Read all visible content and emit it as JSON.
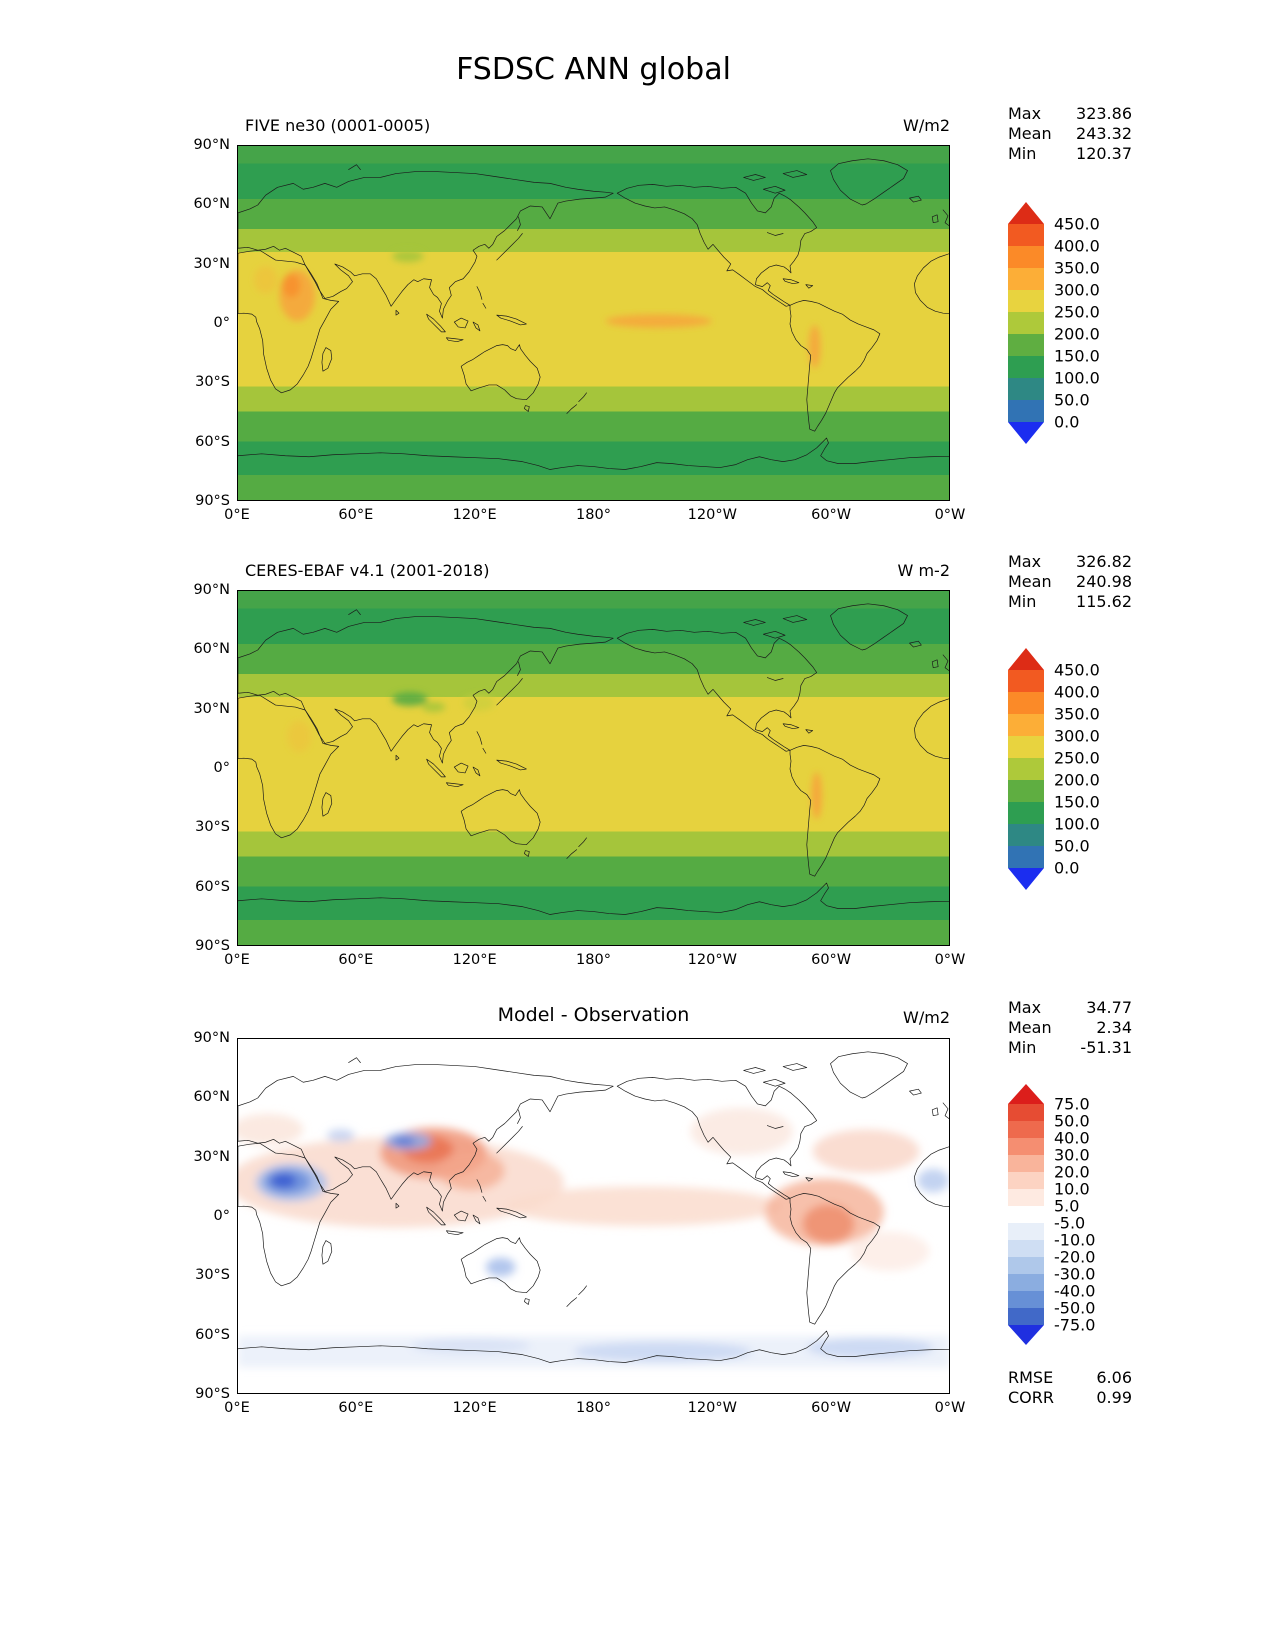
{
  "page_title": "FSDSC ANN global",
  "panels": [
    {
      "title": "FIVE ne30 (0001-0005)",
      "units": "W/m2",
      "stats": [
        {
          "label": "Max",
          "value": "323.86"
        },
        {
          "label": "Mean",
          "value": "243.32"
        },
        {
          "label": "Min",
          "value": "120.37"
        }
      ],
      "lat_ticks": [
        "90°N",
        "60°N",
        "30°N",
        "0°",
        "30°S",
        "60°S",
        "90°S"
      ],
      "lon_ticks": [
        "0°E",
        "60°E",
        "120°E",
        "180°",
        "120°W",
        "60°W",
        "0°W"
      ],
      "colorbar": {
        "labels": [
          "450.0",
          "400.0",
          "350.0",
          "300.0",
          "250.0",
          "200.0",
          "150.0",
          "100.0",
          "50.0",
          "0.0"
        ],
        "colors": [
          "#DD2C16",
          "#F25A21",
          "#FB8A28",
          "#FCAE37",
          "#E8D33F",
          "#AEC93A",
          "#5FAE41",
          "#2E9E51",
          "#2E8884",
          "#3173B4",
          "#1B2DF0"
        ]
      }
    },
    {
      "title": "CERES-EBAF v4.1 (2001-2018)",
      "units": "W m-2",
      "stats": [
        {
          "label": "Max",
          "value": "326.82"
        },
        {
          "label": "Mean",
          "value": "240.98"
        },
        {
          "label": "Min",
          "value": "115.62"
        }
      ],
      "lat_ticks": [
        "90°N",
        "60°N",
        "30°N",
        "0°",
        "30°S",
        "60°S",
        "90°S"
      ],
      "lon_ticks": [
        "0°E",
        "60°E",
        "120°E",
        "180°",
        "120°W",
        "60°W",
        "0°W"
      ],
      "colorbar": {
        "labels": [
          "450.0",
          "400.0",
          "350.0",
          "300.0",
          "250.0",
          "200.0",
          "150.0",
          "100.0",
          "50.0",
          "0.0"
        ],
        "colors": [
          "#DD2C16",
          "#F25A21",
          "#FB8A28",
          "#FCAE37",
          "#E8D33F",
          "#AEC93A",
          "#5FAE41",
          "#2E9E51",
          "#2E8884",
          "#3173B4",
          "#1B2DF0"
        ]
      }
    },
    {
      "title": "Model - Observation",
      "units": "W/m2",
      "stats": [
        {
          "label": "Max",
          "value": "34.77"
        },
        {
          "label": "Mean",
          "value": "2.34"
        },
        {
          "label": "Min",
          "value": "-51.31"
        }
      ],
      "metrics": [
        {
          "label": "RMSE",
          "value": "6.06"
        },
        {
          "label": "CORR",
          "value": "0.99"
        }
      ],
      "lat_ticks": [
        "90°N",
        "60°N",
        "30°N",
        "0°",
        "30°S",
        "60°S",
        "90°S"
      ],
      "lon_ticks": [
        "0°E",
        "60°E",
        "120°E",
        "180°",
        "120°W",
        "60°W",
        "0°W"
      ],
      "colorbar": {
        "labels": [
          "75.0",
          "50.0",
          "40.0",
          "30.0",
          "20.0",
          "10.0",
          "5.0",
          "-5.0",
          "-10.0",
          "-20.0",
          "-30.0",
          "-40.0",
          "-50.0",
          "-75.0"
        ],
        "colors": [
          "#DC1E1B",
          "#E64C33",
          "#EE6A4D",
          "#F58E71",
          "#F9B49B",
          "#FCD3C2",
          "#FEEAE1",
          "#FFFFFF",
          "#E8EFF9",
          "#CFDEF3",
          "#AFC8EA",
          "#8BADE0",
          "#6790D6",
          "#4169C8",
          "#1F2FE0"
        ]
      }
    }
  ],
  "chart_data": [
    {
      "type": "heatmap",
      "subtype": "filled-contour-world-map",
      "title": "FIVE ne30 (0001-0005)",
      "units": "W/m2",
      "projection": "equirectangular, centered 180°",
      "lon_range_deg_east": [
        0,
        360
      ],
      "lat_range": [
        -90,
        90
      ],
      "contour_levels": [
        0,
        50,
        100,
        150,
        200,
        250,
        300,
        350,
        400,
        450
      ],
      "stats": {
        "max": 323.86,
        "mean": 243.32,
        "min": 120.37
      },
      "zonal_mean_estimate": {
        "lat": [
          85,
          70,
          55,
          40,
          25,
          10,
          0,
          -10,
          -25,
          -40,
          -55,
          -70,
          -85
        ],
        "value": [
          140,
          135,
          185,
          235,
          275,
          285,
          285,
          285,
          270,
          230,
          180,
          140,
          175
        ]
      },
      "local_features": [
        {
          "region": "East Africa / Sahel ~10N, 20-40E",
          "value": "300-350"
        },
        {
          "region": "Equatorial central Pacific streak",
          "value": "300-325"
        },
        {
          "region": "Andes ~10-20S",
          "value": "300-320"
        },
        {
          "region": "Tibetan Plateau",
          "value": "200-250"
        }
      ]
    },
    {
      "type": "heatmap",
      "subtype": "filled-contour-world-map",
      "title": "CERES-EBAF v4.1 (2001-2018)",
      "units": "W m-2",
      "projection": "equirectangular, centered 180°",
      "lon_range_deg_east": [
        0,
        360
      ],
      "lat_range": [
        -90,
        90
      ],
      "contour_levels": [
        0,
        50,
        100,
        150,
        200,
        250,
        300,
        350,
        400,
        450
      ],
      "stats": {
        "max": 326.82,
        "mean": 240.98,
        "min": 115.62
      },
      "zonal_mean_estimate": {
        "lat": [
          85,
          70,
          55,
          40,
          25,
          10,
          0,
          -10,
          -25,
          -40,
          -55,
          -70,
          -85
        ],
        "value": [
          140,
          135,
          180,
          230,
          275,
          280,
          285,
          285,
          270,
          230,
          180,
          145,
          170
        ]
      },
      "local_features": [
        {
          "region": "Andes / Atacama ~15-25S",
          "value": "300-330"
        },
        {
          "region": "Tibetan Plateau / East Asia",
          "value": "150-250 (greener than model)"
        }
      ]
    },
    {
      "type": "heatmap",
      "subtype": "difference-map",
      "title": "Model - Observation",
      "units": "W/m2",
      "contour_levels": [
        -75,
        -50,
        -40,
        -30,
        -20,
        -10,
        -5,
        5,
        10,
        20,
        30,
        40,
        50,
        75
      ],
      "stats": {
        "max": 34.77,
        "mean": 2.34,
        "min": -51.31,
        "rmse": 6.06,
        "corr": 0.99
      },
      "local_features": [
        {
          "region": "North-central Africa ~15N, 10-35E",
          "value": "-30 to -51 (strong negative)"
        },
        {
          "region": "Tibetan Plateau / central Asia",
          "value": "-10 to -30"
        },
        {
          "region": "South and East Asia belt 0-40N",
          "value": "+10 to +30"
        },
        {
          "region": "Tropical Atlantic and northern South America",
          "value": "+10 to +25"
        },
        {
          "region": "Tropical Pacific band",
          "value": "+5 to +10"
        },
        {
          "region": "Central Australia",
          "value": "-5 to -10"
        },
        {
          "region": "Antarctic coastal band",
          "value": "-5 to -10"
        },
        {
          "region": "Atlantic off West Africa (right edge)",
          "value": "-5 to -10"
        }
      ]
    }
  ]
}
